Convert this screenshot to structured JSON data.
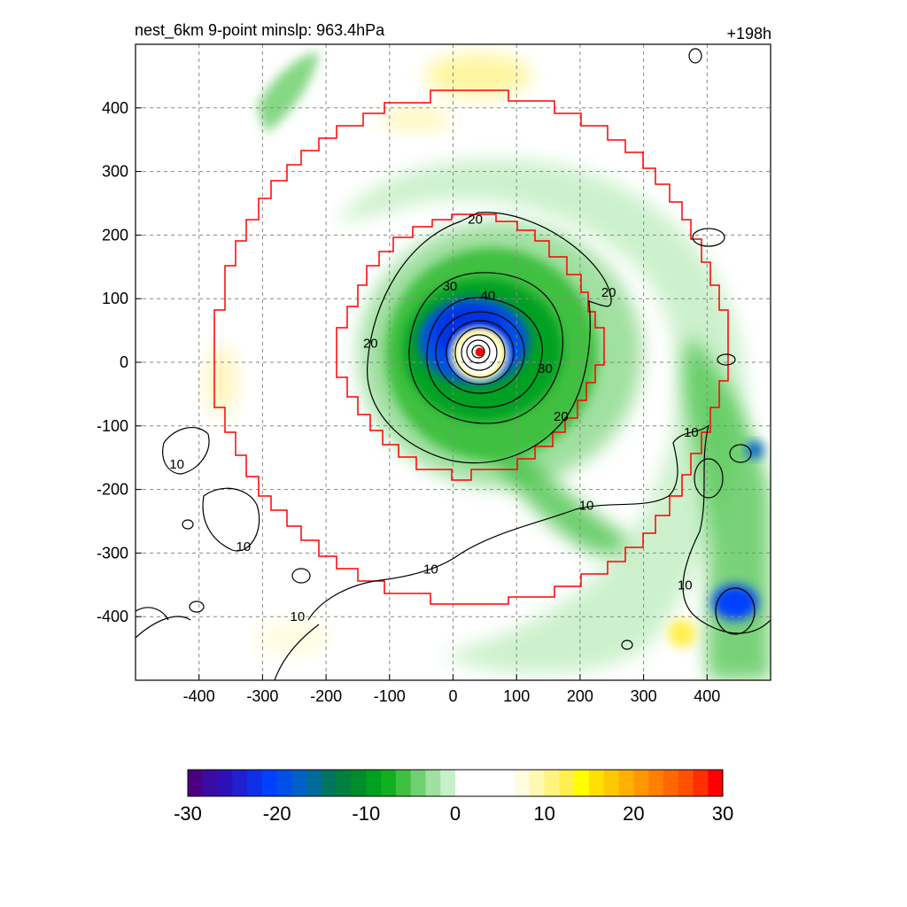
{
  "header": {
    "title": "nest_6km  9-point minslp: 963.4hPa",
    "time_label": "+198h"
  },
  "chart_data": {
    "type": "heatmap",
    "x_ticks": [
      -400,
      -300,
      -200,
      -100,
      0,
      100,
      200,
      300,
      400
    ],
    "y_ticks": [
      400,
      300,
      200,
      100,
      0,
      -100,
      -200,
      -300,
      -400
    ],
    "xlim": [
      -500,
      500
    ],
    "ylim": [
      -500,
      500
    ],
    "grid": true,
    "storm_center": {
      "x": 42,
      "y": 16
    },
    "contour_labels": [
      {
        "text": "20",
        "x": 35,
        "y": 225
      },
      {
        "text": "30",
        "x": -5,
        "y": 120
      },
      {
        "text": "40",
        "x": 55,
        "y": 105
      },
      {
        "text": "20",
        "x": -130,
        "y": 30
      },
      {
        "text": "30",
        "x": 145,
        "y": -10
      },
      {
        "text": "20",
        "x": 245,
        "y": 110
      },
      {
        "text": "20",
        "x": 170,
        "y": -85
      },
      {
        "text": "10",
        "x": 210,
        "y": -225
      },
      {
        "text": "10",
        "x": 375,
        "y": -110
      },
      {
        "text": "10",
        "x": 365,
        "y": -350
      },
      {
        "text": "10",
        "x": -35,
        "y": -325
      },
      {
        "text": "10",
        "x": -330,
        "y": -290
      },
      {
        "text": "10",
        "x": -245,
        "y": -400
      },
      {
        "text": "10",
        "x": -435,
        "y": -160
      }
    ],
    "colorbar": {
      "ticks": [
        -30,
        -20,
        -10,
        0,
        10,
        20,
        30
      ],
      "colors": [
        "#4b0082",
        "#3a0ca3",
        "#2e10b8",
        "#2020d0",
        "#1030e8",
        "#0040ff",
        "#0050e8",
        "#0060c8",
        "#006a9a",
        "#00745e",
        "#00803c",
        "#008c28",
        "#00a020",
        "#10b020",
        "#40c040",
        "#70d070",
        "#a0e0a0",
        "#c8f0c8",
        "#ffffff",
        "#ffffff",
        "#ffffff",
        "#ffffff",
        "#fffce0",
        "#fff8b0",
        "#fff480",
        "#fff050",
        "#ffff00",
        "#ffe000",
        "#ffc800",
        "#ffb000",
        "#ff9800",
        "#ff8000",
        "#ff6800",
        "#ff5000",
        "#ff3000",
        "#ff0000"
      ]
    }
  }
}
